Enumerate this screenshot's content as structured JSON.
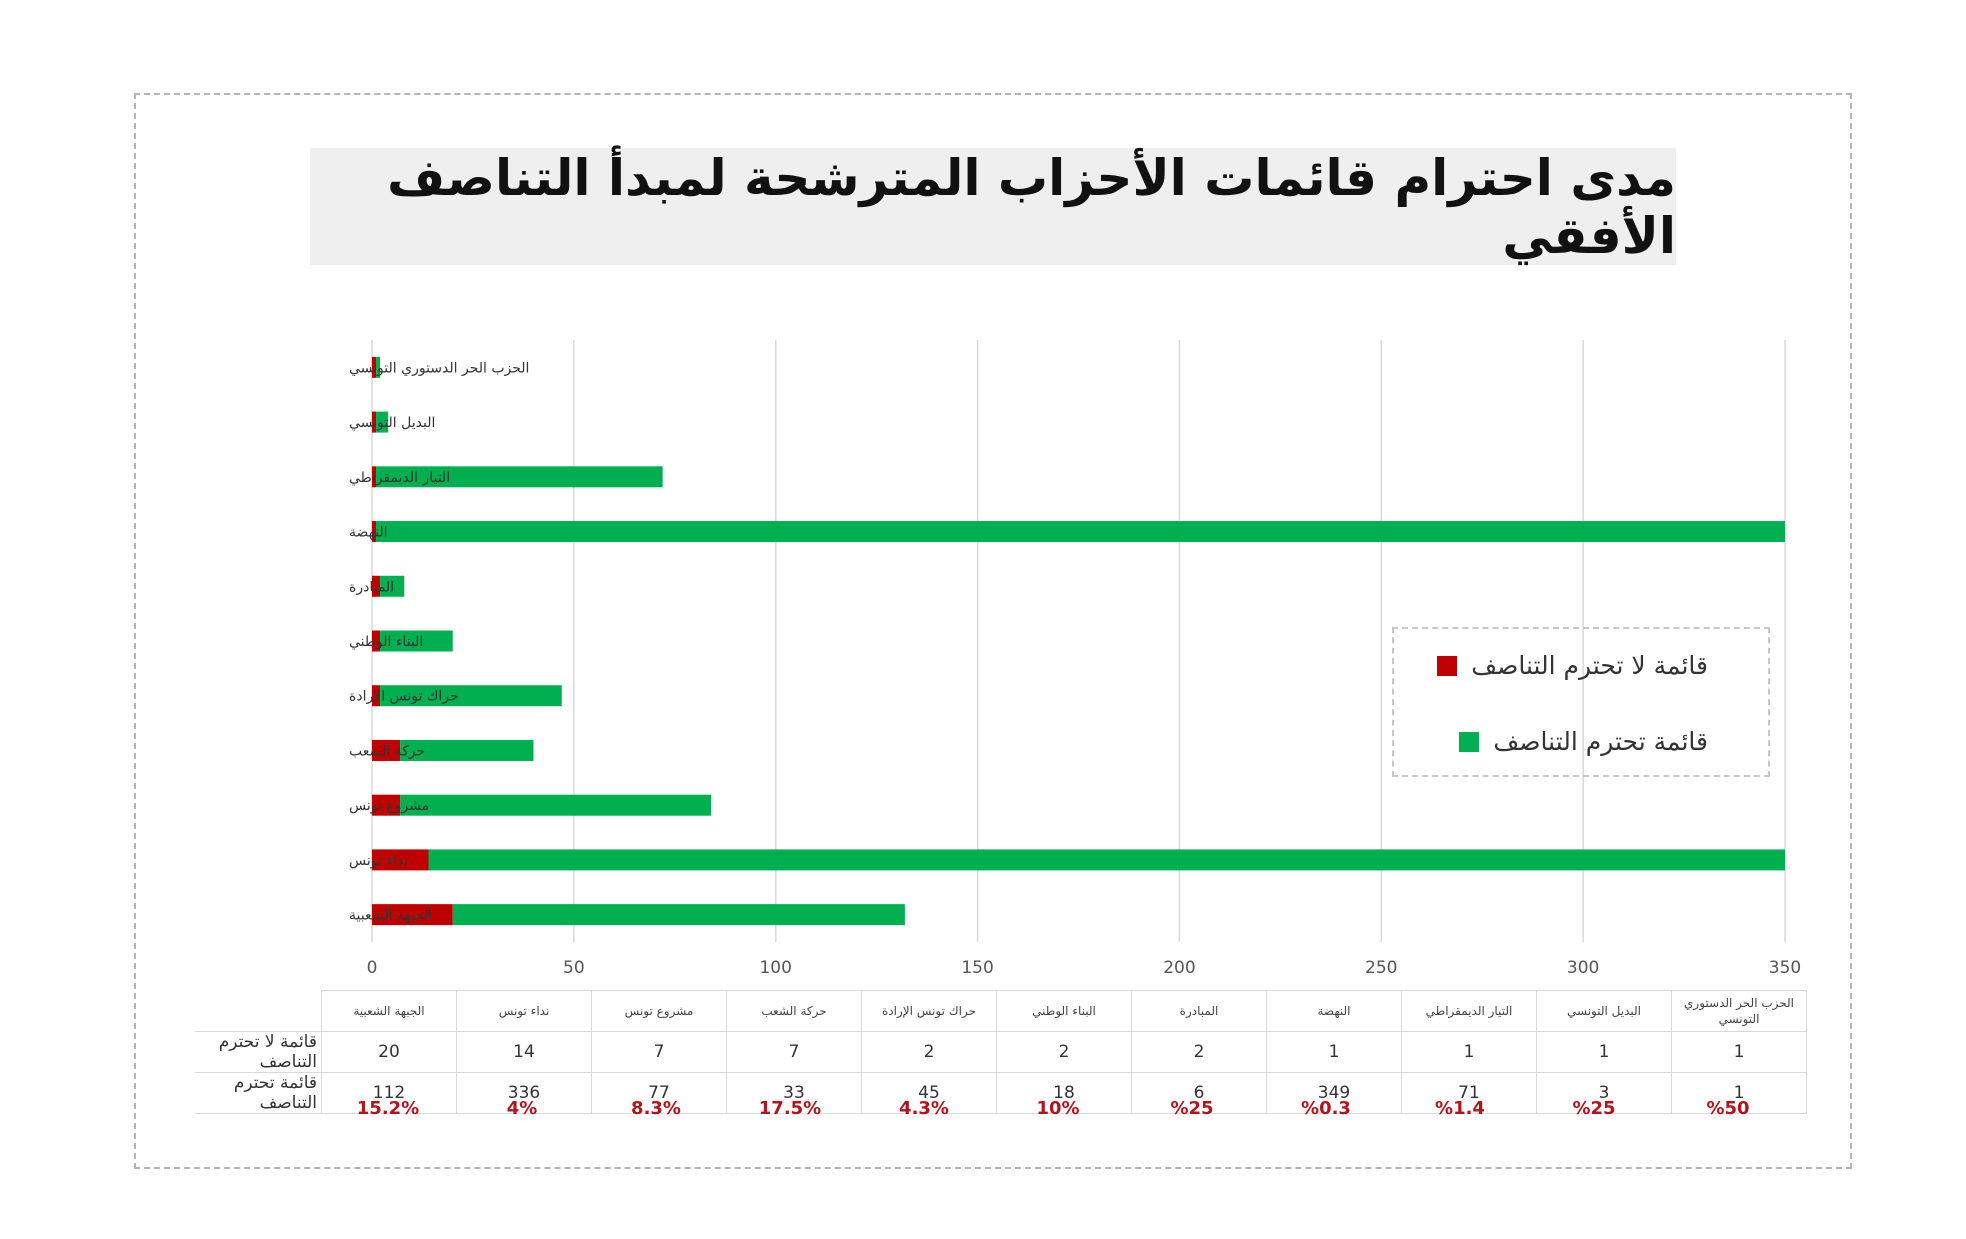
{
  "title": "مدى احترام قائمات الأحزاب المترشحة لمبدأ التناصف الأفقي",
  "colors": {
    "not_respect": "#c00000",
    "respect": "#00b050"
  },
  "legend": {
    "not_respect": "قائمة لا تحترم التناصف",
    "respect": "قائمة تحترم التناصف"
  },
  "chart_data": {
    "type": "bar",
    "orientation": "horizontal",
    "stacked": true,
    "categories": [
      "الحزب الحر الدستوري التونسي",
      "البديل التونسي",
      "التيار الديمقراطي",
      "النهضة",
      "المبادرة",
      "البناء الوطني",
      "حراك تونس الإرادة",
      "حركة الشعب",
      "مشروع تونس",
      "نداء تونس",
      "الجبهة الشعبية"
    ],
    "series": [
      {
        "name": "قائمة لا تحترم التناصف",
        "values": [
          1,
          1,
          1,
          1,
          2,
          2,
          2,
          7,
          7,
          14,
          20
        ]
      },
      {
        "name": "قائمة تحترم التناصف",
        "values": [
          1,
          3,
          71,
          349,
          6,
          18,
          45,
          33,
          77,
          336,
          112
        ]
      }
    ],
    "xlim": [
      0,
      350
    ],
    "xticks": [
      0,
      50,
      100,
      150,
      200,
      250,
      300,
      350
    ],
    "grid": "vertical",
    "legend_position": "right"
  },
  "table": {
    "row_labels": [
      "قائمة لا تحترم التناصف",
      "قائمة تحترم التناصف"
    ],
    "columns": [
      "الجبهة الشعبية",
      "نداء تونس",
      "مشروع تونس",
      "حركة الشعب",
      "حراك تونس الإرادة",
      "البناء الوطني",
      "المبادرة",
      "النهضة",
      "التيار الديمقراطي",
      "البديل التونسي",
      "الحزب الحر الدستوري التونسي"
    ],
    "not_respect": [
      "20",
      "14",
      "7",
      "7",
      "2",
      "2",
      "2",
      "1",
      "1",
      "1",
      "1"
    ],
    "respect": [
      "112",
      "336",
      "77",
      "33",
      "45",
      "18",
      "6",
      "349",
      "71",
      "3",
      "1"
    ],
    "percentages": [
      "15.2%",
      "4%",
      "8.3%",
      "17.5%",
      "4.3%",
      "10%",
      "%25",
      "%0.3",
      "%1.4",
      "%25",
      "%50"
    ]
  }
}
